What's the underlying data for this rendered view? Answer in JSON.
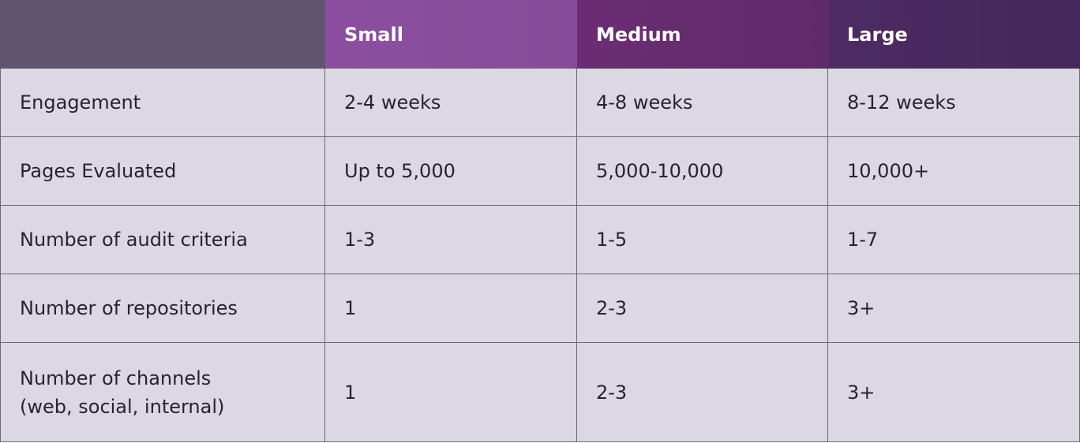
{
  "table": {
    "header": [
      "Small",
      "Medium",
      "Large"
    ],
    "rows": [
      [
        "Engagement",
        "2-4 weeks",
        "4-8 weeks",
        "8-12 weeks"
      ],
      [
        "Pages Evaluated",
        "Up to 5,000",
        "5,000-10,000",
        "10,000+"
      ],
      [
        "Number of audit criteria",
        "1-3",
        "1-5",
        "1-7"
      ],
      [
        "Number of repositories",
        "1",
        "2-3",
        "3+"
      ],
      [
        "Number of channels\n(web, social, internal)",
        "1",
        "2-3",
        "3+"
      ]
    ]
  }
}
